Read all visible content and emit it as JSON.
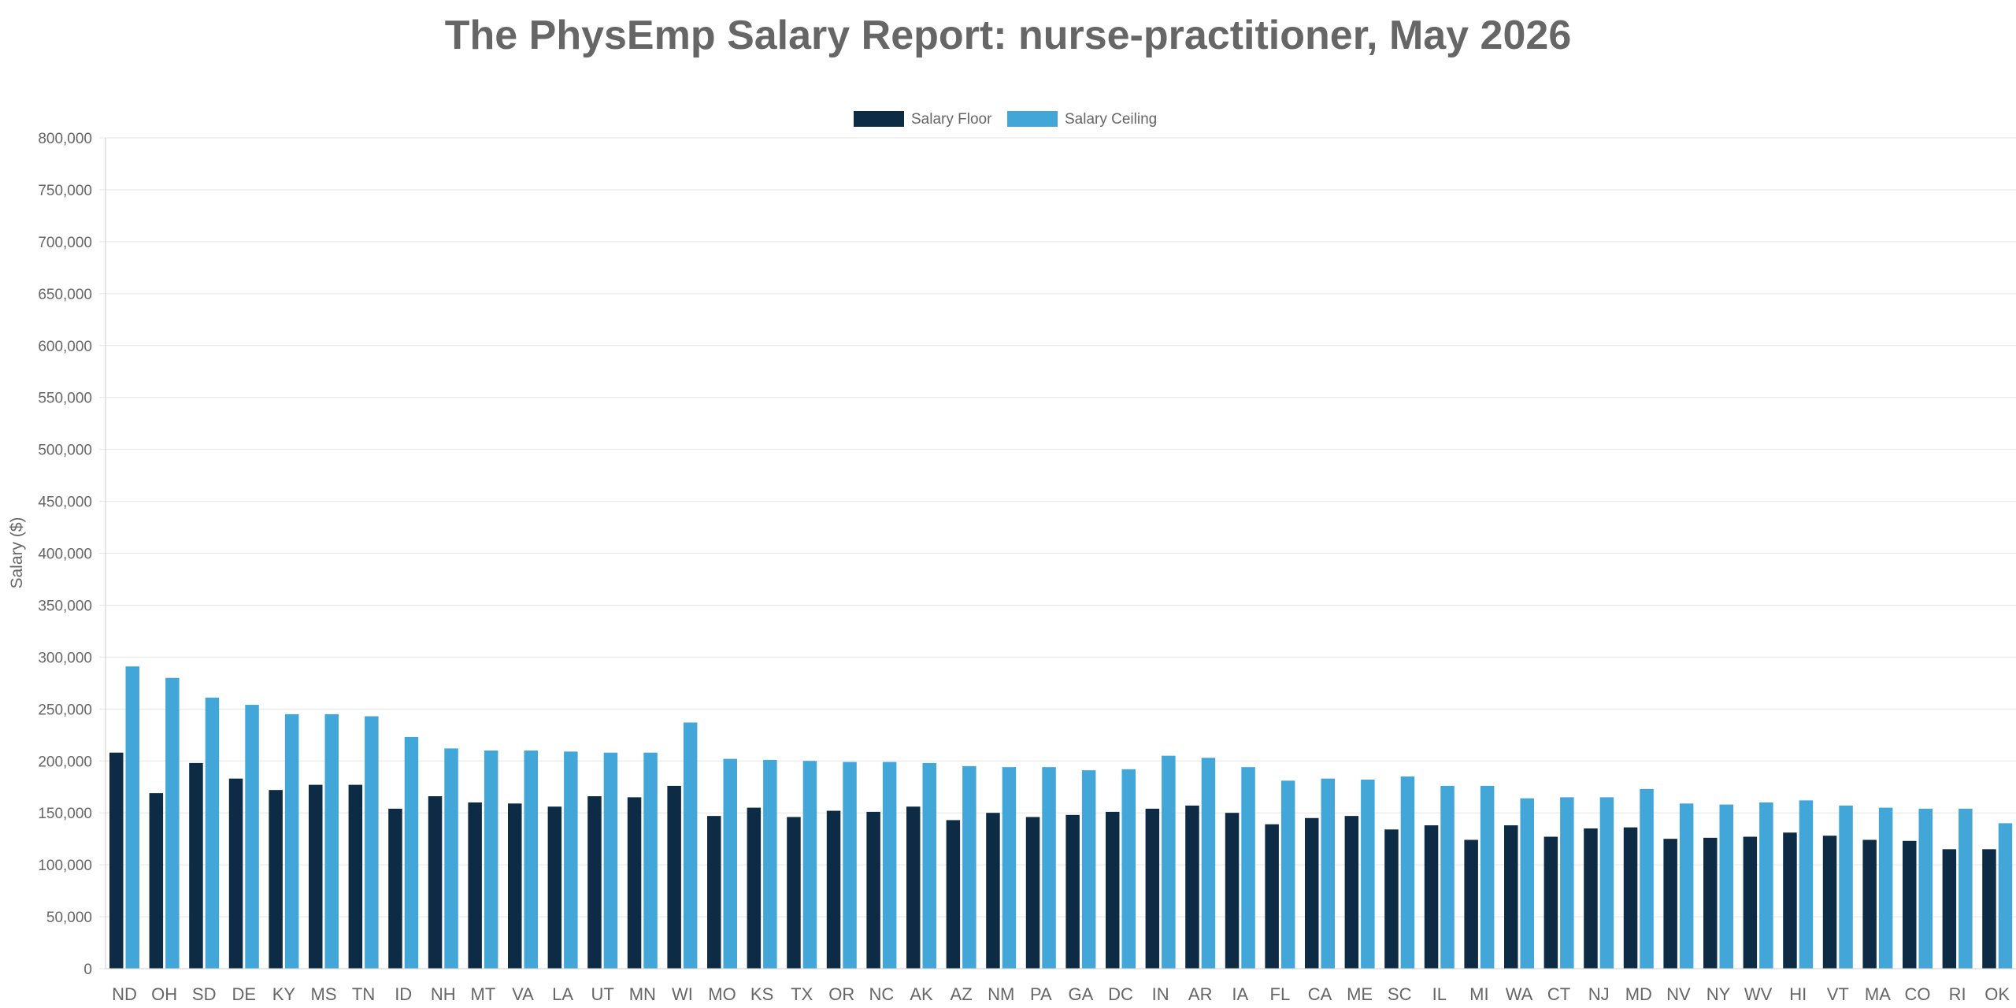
{
  "chart_data": {
    "type": "bar",
    "title": "The PhysEmp Salary Report: nurse-practitioner, May 2026",
    "xlabel": "",
    "ylabel": "Salary ($)",
    "ylim": [
      0,
      800000
    ],
    "yticks": [
      0,
      50000,
      100000,
      150000,
      200000,
      250000,
      300000,
      350000,
      400000,
      450000,
      500000,
      550000,
      600000,
      650000,
      700000,
      750000,
      800000
    ],
    "ytick_labels": [
      "0",
      "50,000",
      "100,000",
      "150,000",
      "200,000",
      "250,000",
      "300,000",
      "350,000",
      "400,000",
      "450,000",
      "500,000",
      "550,000",
      "600,000",
      "650,000",
      "700,000",
      "750,000",
      "800,000"
    ],
    "grid": true,
    "legend_position": "top-center",
    "categories": [
      "ND",
      "OH",
      "SD",
      "DE",
      "KY",
      "MS",
      "TN",
      "ID",
      "NH",
      "MT",
      "VA",
      "LA",
      "UT",
      "MN",
      "WI",
      "MO",
      "KS",
      "TX",
      "OR",
      "NC",
      "AK",
      "AZ",
      "NM",
      "PA",
      "GA",
      "DC",
      "IN",
      "AR",
      "IA",
      "FL",
      "CA",
      "ME",
      "SC",
      "IL",
      "MI",
      "WA",
      "CT",
      "NJ",
      "MD",
      "NV",
      "NY",
      "WV",
      "HI",
      "VT",
      "MA",
      "CO",
      "RI",
      "OK"
    ],
    "series": [
      {
        "name": "Salary Floor",
        "color": "#0d2b45",
        "values": [
          208000,
          169000,
          198000,
          183000,
          172000,
          177000,
          177000,
          154000,
          166000,
          160000,
          159000,
          156000,
          166000,
          165000,
          176000,
          147000,
          155000,
          146000,
          152000,
          151000,
          156000,
          143000,
          150000,
          146000,
          148000,
          151000,
          154000,
          157000,
          150000,
          139000,
          145000,
          147000,
          134000,
          138000,
          124000,
          138000,
          127000,
          135000,
          136000,
          125000,
          126000,
          127000,
          131000,
          128000,
          124000,
          123000,
          115000,
          115000
        ]
      },
      {
        "name": "Salary Ceiling",
        "color": "#42a7d8",
        "values": [
          291000,
          280000,
          261000,
          254000,
          245000,
          245000,
          243000,
          223000,
          212000,
          210000,
          210000,
          209000,
          208000,
          208000,
          237000,
          202000,
          201000,
          200000,
          199000,
          199000,
          198000,
          195000,
          194000,
          194000,
          191000,
          192000,
          205000,
          203000,
          194000,
          181000,
          183000,
          182000,
          185000,
          176000,
          176000,
          164000,
          165000,
          165000,
          173000,
          159000,
          158000,
          160000,
          162000,
          157000,
          155000,
          154000,
          154000,
          140000
        ]
      }
    ]
  }
}
